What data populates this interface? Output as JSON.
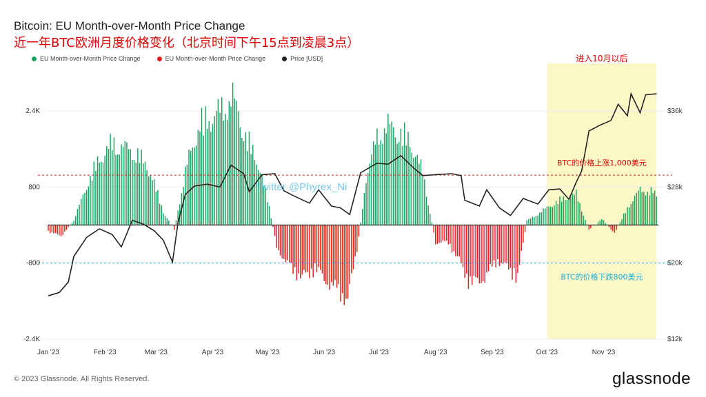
{
  "header": {
    "title": "Bitcoin: EU Month-over-Month Price Change",
    "subtitle": "近一年BTC欧洲月度价格变化（北京时间下午15点到凌晨3点）"
  },
  "legend": [
    {
      "label": "EU Month-over-Month Price Change",
      "color": "#18a35f"
    },
    {
      "label": "EU Month-over-Month Price Change",
      "color": "#e02020"
    },
    {
      "label": "Price [USD]",
      "color": "#222222"
    }
  ],
  "annotations": {
    "highlight_label": "进入10月以后",
    "upper_line_label": "BTC的价格上涨1,000美元",
    "lower_line_label": "BTC的价格下跌800美元",
    "watermark": "Twitter @Phyrex_Ni"
  },
  "footer": {
    "copyright": "© 2023 Glassnode. All Rights Reserved.",
    "logo": "glassnode"
  },
  "colors": {
    "positive": "#18a35f",
    "negative": "#e02020",
    "price": "#222222",
    "highlight": "#fbf7c6",
    "upper_line": "#e02020",
    "lower_line": "#1ab0d8"
  },
  "chart_data": {
    "type": "bar",
    "x_ticks": [
      "Jan '23",
      "Feb '23",
      "Mar '23",
      "Apr '23",
      "May '23",
      "Jun '23",
      "Jul '23",
      "Aug '23",
      "Sep '23",
      "Oct '23",
      "Nov '23"
    ],
    "y_left": {
      "ticks": [
        2400,
        800,
        -800,
        -2400
      ],
      "tick_labels": [
        "2.4K",
        "800",
        "-800",
        "-2.4K"
      ],
      "range": [
        -2400,
        3400
      ]
    },
    "y_right": {
      "ticks": [
        36000,
        28000,
        20000,
        12000
      ],
      "tick_labels": [
        "$36k",
        "$28k",
        "$20k",
        "$12k"
      ],
      "range": [
        12000,
        41000
      ]
    },
    "reference_lines": {
      "upper": 1050,
      "lower": -800
    },
    "highlight_range": [
      "2023-10-01",
      "2023-11-30"
    ],
    "monthly_change_envelope": [
      {
        "date": "2023-01-01",
        "value": -150
      },
      {
        "date": "2023-01-08",
        "value": -250
      },
      {
        "date": "2023-01-15",
        "value": 100
      },
      {
        "date": "2023-01-22",
        "value": 900
      },
      {
        "date": "2023-01-29",
        "value": 1500
      },
      {
        "date": "2023-02-05",
        "value": 1850
      },
      {
        "date": "2023-02-12",
        "value": 1750
      },
      {
        "date": "2023-02-19",
        "value": 1600
      },
      {
        "date": "2023-02-26",
        "value": 1200
      },
      {
        "date": "2023-03-05",
        "value": 300
      },
      {
        "date": "2023-03-11",
        "value": -100
      },
      {
        "date": "2023-03-18",
        "value": 1400
      },
      {
        "date": "2023-03-25",
        "value": 2300
      },
      {
        "date": "2023-04-01",
        "value": 2450
      },
      {
        "date": "2023-04-08",
        "value": 2700
      },
      {
        "date": "2023-04-12",
        "value": 2900
      },
      {
        "date": "2023-04-19",
        "value": 2000
      },
      {
        "date": "2023-04-26",
        "value": 1400
      },
      {
        "date": "2023-05-02",
        "value": 400
      },
      {
        "date": "2023-05-06",
        "value": -500
      },
      {
        "date": "2023-05-12",
        "value": -900
      },
      {
        "date": "2023-05-20",
        "value": -1200
      },
      {
        "date": "2023-05-27",
        "value": -1000
      },
      {
        "date": "2023-06-03",
        "value": -1300
      },
      {
        "date": "2023-06-10",
        "value": -1550
      },
      {
        "date": "2023-06-14",
        "value": -1700
      },
      {
        "date": "2023-06-20",
        "value": -300
      },
      {
        "date": "2023-06-24",
        "value": 1100
      },
      {
        "date": "2023-06-30",
        "value": 2000
      },
      {
        "date": "2023-07-06",
        "value": 2250
      },
      {
        "date": "2023-07-12",
        "value": 2100
      },
      {
        "date": "2023-07-18",
        "value": 1900
      },
      {
        "date": "2023-07-25",
        "value": 1200
      },
      {
        "date": "2023-08-01",
        "value": -400
      },
      {
        "date": "2023-08-08",
        "value": -400
      },
      {
        "date": "2023-08-15",
        "value": -900
      },
      {
        "date": "2023-08-20",
        "value": -1350
      },
      {
        "date": "2023-08-28",
        "value": -1200
      },
      {
        "date": "2023-09-04",
        "value": -800
      },
      {
        "date": "2023-09-10",
        "value": -1000
      },
      {
        "date": "2023-09-15",
        "value": -1200
      },
      {
        "date": "2023-09-20",
        "value": 100
      },
      {
        "date": "2023-09-26",
        "value": 250
      },
      {
        "date": "2023-10-03",
        "value": 450
      },
      {
        "date": "2023-10-10",
        "value": 600
      },
      {
        "date": "2023-10-17",
        "value": 700
      },
      {
        "date": "2023-10-24",
        "value": -100
      },
      {
        "date": "2023-10-31",
        "value": 150
      },
      {
        "date": "2023-11-07",
        "value": -200
      },
      {
        "date": "2023-11-14",
        "value": 400
      },
      {
        "date": "2023-11-21",
        "value": 800
      },
      {
        "date": "2023-11-28",
        "value": 750
      },
      {
        "date": "2023-12-01",
        "value": 600
      }
    ],
    "price_usd": [
      {
        "date": "2023-01-01",
        "value": 16550
      },
      {
        "date": "2023-01-07",
        "value": 16900
      },
      {
        "date": "2023-01-12",
        "value": 18000
      },
      {
        "date": "2023-01-15",
        "value": 20700
      },
      {
        "date": "2023-01-22",
        "value": 22700
      },
      {
        "date": "2023-01-29",
        "value": 23600
      },
      {
        "date": "2023-02-05",
        "value": 23000
      },
      {
        "date": "2023-02-10",
        "value": 21700
      },
      {
        "date": "2023-02-16",
        "value": 24500
      },
      {
        "date": "2023-02-22",
        "value": 24100
      },
      {
        "date": "2023-02-28",
        "value": 23400
      },
      {
        "date": "2023-03-05",
        "value": 22400
      },
      {
        "date": "2023-03-10",
        "value": 20100
      },
      {
        "date": "2023-03-13",
        "value": 24200
      },
      {
        "date": "2023-03-17",
        "value": 27200
      },
      {
        "date": "2023-03-22",
        "value": 28100
      },
      {
        "date": "2023-03-29",
        "value": 28300
      },
      {
        "date": "2023-04-05",
        "value": 28000
      },
      {
        "date": "2023-04-11",
        "value": 30300
      },
      {
        "date": "2023-04-18",
        "value": 29400
      },
      {
        "date": "2023-04-21",
        "value": 27500
      },
      {
        "date": "2023-04-28",
        "value": 29300
      },
      {
        "date": "2023-05-05",
        "value": 29400
      },
      {
        "date": "2023-05-10",
        "value": 27600
      },
      {
        "date": "2023-05-15",
        "value": 27100
      },
      {
        "date": "2023-05-24",
        "value": 26300
      },
      {
        "date": "2023-05-29",
        "value": 27700
      },
      {
        "date": "2023-06-05",
        "value": 26000
      },
      {
        "date": "2023-06-10",
        "value": 25800
      },
      {
        "date": "2023-06-15",
        "value": 25100
      },
      {
        "date": "2023-06-21",
        "value": 29500
      },
      {
        "date": "2023-06-30",
        "value": 30500
      },
      {
        "date": "2023-07-06",
        "value": 30400
      },
      {
        "date": "2023-07-13",
        "value": 31300
      },
      {
        "date": "2023-07-20",
        "value": 30000
      },
      {
        "date": "2023-07-25",
        "value": 29200
      },
      {
        "date": "2023-08-01",
        "value": 29300
      },
      {
        "date": "2023-08-10",
        "value": 29400
      },
      {
        "date": "2023-08-15",
        "value": 29200
      },
      {
        "date": "2023-08-17",
        "value": 26600
      },
      {
        "date": "2023-08-25",
        "value": 26000
      },
      {
        "date": "2023-08-29",
        "value": 27700
      },
      {
        "date": "2023-09-05",
        "value": 25800
      },
      {
        "date": "2023-09-11",
        "value": 25000
      },
      {
        "date": "2023-09-18",
        "value": 26800
      },
      {
        "date": "2023-09-26",
        "value": 26200
      },
      {
        "date": "2023-10-02",
        "value": 27700
      },
      {
        "date": "2023-10-08",
        "value": 27800
      },
      {
        "date": "2023-10-13",
        "value": 26700
      },
      {
        "date": "2023-10-17",
        "value": 28500
      },
      {
        "date": "2023-10-20",
        "value": 29700
      },
      {
        "date": "2023-10-24",
        "value": 33900
      },
      {
        "date": "2023-10-30",
        "value": 34500
      },
      {
        "date": "2023-11-05",
        "value": 35000
      },
      {
        "date": "2023-11-09",
        "value": 36700
      },
      {
        "date": "2023-11-14",
        "value": 35500
      },
      {
        "date": "2023-11-16",
        "value": 37800
      },
      {
        "date": "2023-11-21",
        "value": 35800
      },
      {
        "date": "2023-11-24",
        "value": 37700
      },
      {
        "date": "2023-11-30",
        "value": 37800
      }
    ]
  }
}
